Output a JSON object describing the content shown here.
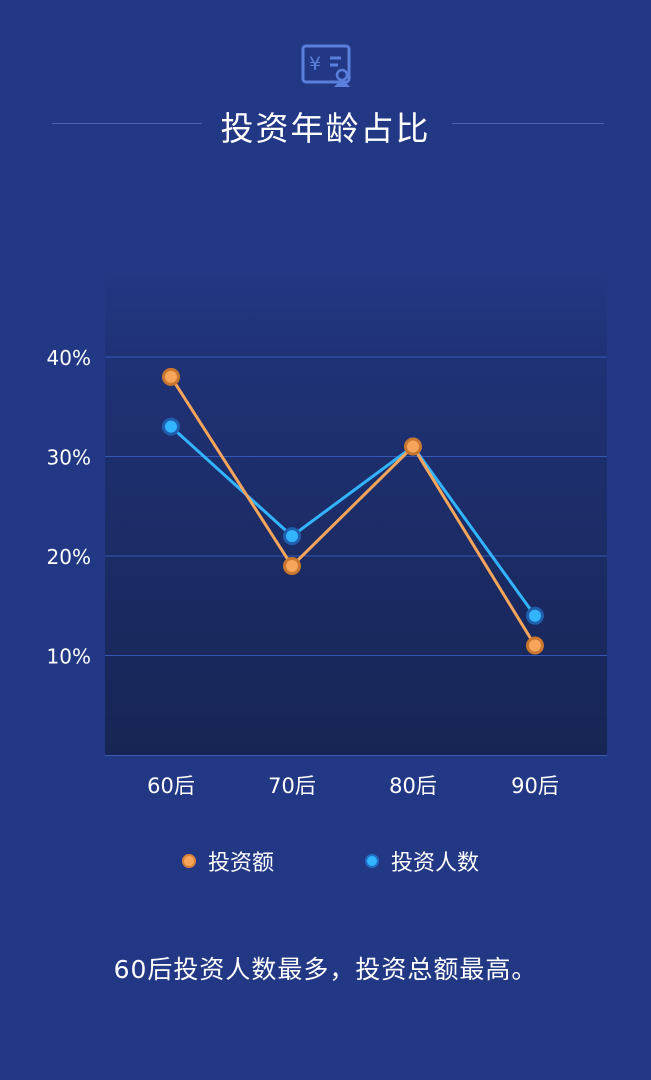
{
  "header": {
    "icon": "yuan-invoice-user-icon",
    "title": "投资年龄占比"
  },
  "chart_data": {
    "type": "line",
    "categories": [
      "60后",
      "70后",
      "80后",
      "90后"
    ],
    "y_ticks": [
      "40%",
      "30%",
      "20%",
      "10%"
    ],
    "ylim": [
      0,
      40
    ],
    "series": [
      {
        "name": "投资额",
        "values": [
          38,
          19,
          31,
          11
        ],
        "color": "#f7a55a"
      },
      {
        "name": "投资人数",
        "values": [
          33,
          22,
          31,
          14
        ],
        "color": "#33b4ff"
      }
    ],
    "grid": true,
    "legend_position": "bottom"
  },
  "legend": {
    "items": [
      {
        "label": "投资额",
        "color": "#f7a55a"
      },
      {
        "label": "投资人数",
        "color": "#33b4ff"
      }
    ]
  },
  "summary": "60后投资人数最多，投资总额最高。"
}
